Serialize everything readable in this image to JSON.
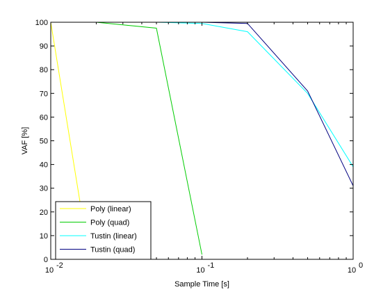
{
  "chart_data": {
    "type": "line",
    "title": "",
    "xlabel": "Sample Time [s]",
    "ylabel": "VAF [%]",
    "xscale": "log",
    "xlim": [
      0.01,
      1
    ],
    "ylim": [
      0,
      100
    ],
    "grid": false,
    "legend_position": "bottom-left",
    "x_ticks": [
      {
        "value": 0.01,
        "base": "10",
        "exp": "-2"
      },
      {
        "value": 0.1,
        "base": "10",
        "exp": "-1"
      },
      {
        "value": 1,
        "base": "10",
        "exp": "0"
      }
    ],
    "y_ticks": [
      0,
      10,
      20,
      30,
      40,
      50,
      60,
      70,
      80,
      90,
      100
    ],
    "series": [
      {
        "name": "Poly (linear)",
        "color": "#ffff00",
        "x": [
          0.01,
          0.02
        ],
        "y": [
          100,
          -18
        ]
      },
      {
        "name": "Poly (quad)",
        "color": "#00cc00",
        "x": [
          0.02,
          0.05,
          0.1
        ],
        "y": [
          100,
          97.5,
          2
        ]
      },
      {
        "name": "Tustin (linear)",
        "color": "#00ffff",
        "x": [
          0.05,
          0.1,
          0.2,
          0.5,
          1
        ],
        "y": [
          100,
          99.5,
          96,
          70,
          39
        ]
      },
      {
        "name": "Tustin (quad)",
        "color": "#000080",
        "x": [
          0.1,
          0.2,
          0.5,
          1
        ],
        "y": [
          100,
          99.5,
          71,
          31
        ]
      }
    ]
  }
}
